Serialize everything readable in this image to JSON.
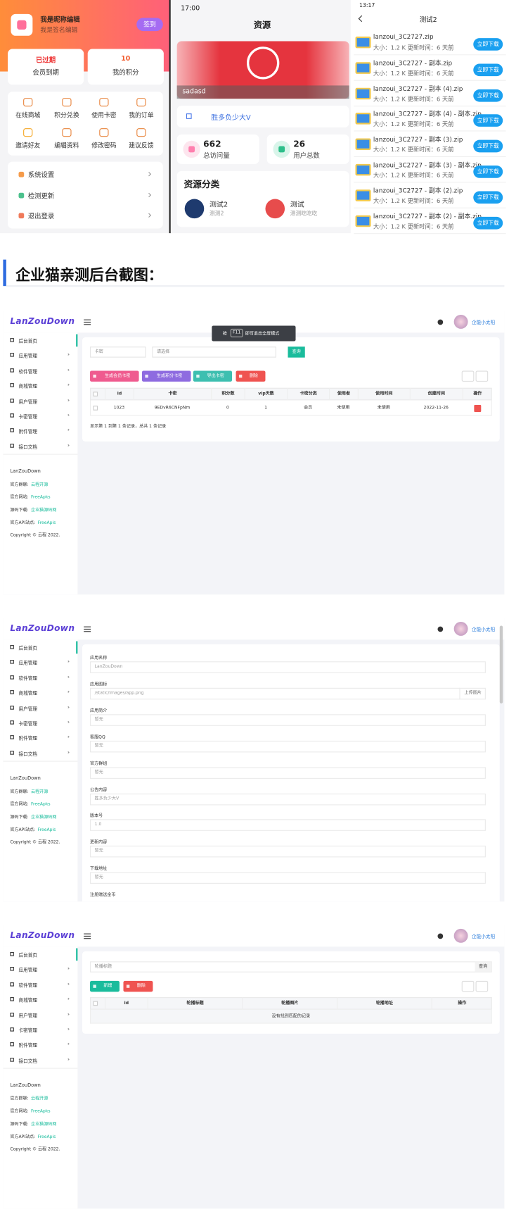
{
  "profile_phone": {
    "nickname": "我是昵称编辑",
    "signature": "我是签名编辑",
    "checkin_button": "签到",
    "stats": [
      {
        "value": "已过期",
        "label": "会员到期"
      },
      {
        "value": "10",
        "label": "我的积分"
      }
    ],
    "grid": [
      "在线商城",
      "积分兑换",
      "使用卡密",
      "我的订单",
      "邀请好友",
      "编辑资料",
      "修改密码",
      "建议反馈"
    ],
    "menu": [
      "系统设置",
      "检测更新",
      "退出登录"
    ]
  },
  "resource_phone": {
    "time": "17:00",
    "title": "资源",
    "banner_caption": "sadasd",
    "notice": "胜多负少大V",
    "stats": [
      {
        "value": "662",
        "label": "总访问量"
      },
      {
        "value": "26",
        "label": "用户总数"
      }
    ],
    "section_title": "资源分类",
    "categories": [
      {
        "name": "测试2",
        "desc": "测测2"
      },
      {
        "name": "测试",
        "desc": "测测吃吃吃"
      }
    ]
  },
  "files_phone": {
    "time": "13:17",
    "title": "测试2",
    "download_button": "立即下载",
    "files": [
      {
        "name": "lanzoui_3C2727.zip",
        "meta": "大小：1.2 K  更新时间：6 天前"
      },
      {
        "name": "lanzoui_3C2727 - 副本.zip",
        "meta": "大小：1.2 K  更新时间：6 天前"
      },
      {
        "name": "lanzoui_3C2727 - 副本 (4).zip",
        "meta": "大小：1.2 K  更新时间：6 天前"
      },
      {
        "name": "lanzoui_3C2727 - 副本 (4) - 副本.zip",
        "meta": "大小：1.2 K  更新时间：6 天前"
      },
      {
        "name": "lanzoui_3C2727 - 副本 (3).zip",
        "meta": "大小：1.2 K  更新时间：6 天前"
      },
      {
        "name": "lanzoui_3C2727 - 副本 (3) - 副本.zip",
        "meta": "大小：1.2 K  更新时间：6 天前"
      },
      {
        "name": "lanzoui_3C2727 - 副本 (2).zip",
        "meta": "大小：1.2 K  更新时间：6 天前"
      },
      {
        "name": "lanzoui_3C2727 - 副本 (2) - 副本.zip",
        "meta": "大小：1.2 K  更新时间：6 天前"
      }
    ]
  },
  "section_heading": "企业猫亲测后台截图：",
  "admin": {
    "logo": "LanZouDown",
    "user": "企能小太阳",
    "sidebar_menu": [
      "后台首页",
      "应用管理",
      "软件管理",
      "商城管理",
      "用户管理",
      "卡密管理",
      "附件管理",
      "接口文档"
    ],
    "footer": {
      "brand": "LanZouDown",
      "items": [
        {
          "label": "官方群聊:",
          "link": "云程开源"
        },
        {
          "label": "官方网站:",
          "link": "FreeApks"
        },
        {
          "label": "源码下载:",
          "link": "企业猫源码网"
        },
        {
          "label": "官方API站点:",
          "link": "FreeApis"
        }
      ],
      "copyright": "Copyright © 云程 2022."
    }
  },
  "card_admin": {
    "fullscreen_hint": [
      "按",
      "F11",
      "即可退出全屏模式"
    ],
    "filter_card": "卡密",
    "filter_select": "请选择",
    "query_button": "查询",
    "buttons": [
      "生成会员卡密",
      "生成积分卡密",
      "导出卡密",
      "删除"
    ],
    "columns": [
      "id",
      "卡密",
      "积分数",
      "vip天数",
      "卡密分类",
      "使用者",
      "使用时间",
      "创建时间",
      "操作"
    ],
    "row": [
      "1023",
      "9EDvR6CNFpNm",
      "0",
      "1",
      "会员",
      "未使用",
      "未使用",
      "2022-11-26"
    ],
    "pagination": "显示第 1 到第 1 条记录，总共 1 条记录"
  },
  "settings_admin": {
    "upload_button": "上传图片",
    "fields": [
      {
        "label": "应用名称",
        "value": "LanZouDown"
      },
      {
        "label": "应用图标",
        "value": "/static/images/app.png"
      },
      {
        "label": "应用简介",
        "value": "暂无"
      },
      {
        "label": "客服QQ",
        "value": "暂无"
      },
      {
        "label": "官方群组",
        "value": "暂无"
      },
      {
        "label": "公告内容",
        "value": "胜多负少大V"
      },
      {
        "label": "版本号",
        "value": "1.0"
      },
      {
        "label": "更新内容",
        "value": "暂无"
      },
      {
        "label": "下载地址",
        "value": "暂无"
      },
      {
        "label": "注册赠送金币"
      }
    ]
  },
  "banner_admin": {
    "search_placeholder": "轮播标题",
    "query_button": "查询",
    "buttons": [
      "新增",
      "删除"
    ],
    "columns": [
      "id",
      "轮播标题",
      "轮播图片",
      "轮播地址",
      "操作"
    ],
    "empty": "没有找到匹配的记录"
  }
}
